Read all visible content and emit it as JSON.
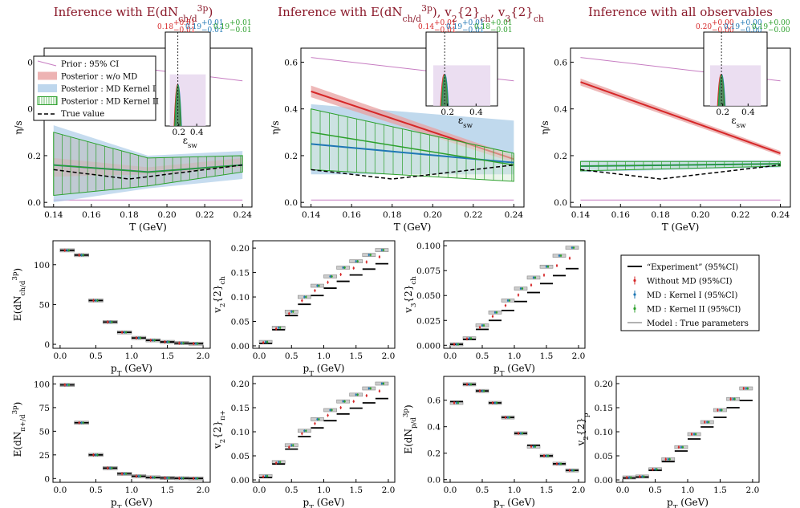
{
  "chart_data": [
    {
      "type": "line",
      "kind": "etas",
      "panel": "A",
      "title": "Inference with E(dN_ch/d^3p)",
      "xlabel": "T (GeV)",
      "ylabel": "η/s",
      "xlim": [
        0.135,
        0.245
      ],
      "ylim": [
        -0.02,
        0.66
      ],
      "xticks": [
        "0.14",
        "0.16",
        "0.18",
        "0.20",
        "0.22",
        "0.24"
      ],
      "yticks": [
        "0.0",
        "0.2",
        "0.4",
        "0.6"
      ],
      "series": [
        {
          "name": "Prior : 95% CI",
          "x": [
            0.14,
            0.24
          ],
          "lower": [
            0.01,
            0.01
          ],
          "upper": [
            0.62,
            0.52
          ],
          "color": "#c77dc2"
        },
        {
          "name": "Posterior : w/o MD",
          "x": [
            0.14,
            0.19,
            0.24
          ],
          "lower": [
            0.11,
            0.12,
            0.15
          ],
          "upper": [
            0.19,
            0.15,
            0.19
          ],
          "color": "#e8a0a0"
        },
        {
          "name": "Posterior : MD Kernel I",
          "x": [
            0.14,
            0.19,
            0.24
          ],
          "lower": [
            0.0,
            0.06,
            0.1
          ],
          "upper": [
            0.33,
            0.2,
            0.22
          ],
          "center": [
            0.16,
            0.13,
            0.16
          ],
          "color": "#aecde8"
        },
        {
          "name": "Posterior : MD Kernel II",
          "x": [
            0.14,
            0.19,
            0.24
          ],
          "lower": [
            0.03,
            0.07,
            0.13
          ],
          "upper": [
            0.3,
            0.19,
            0.2
          ],
          "center": [
            0.16,
            0.13,
            0.16
          ],
          "color": "#2ca02c"
        },
        {
          "name": "True value",
          "x": [
            0.14,
            0.18,
            0.24
          ],
          "y": [
            0.14,
            0.1,
            0.16
          ],
          "color": "#000000"
        }
      ],
      "legend": "top-left",
      "inset": {
        "xlabel": "ε_sw",
        "xticks": [
          "0.2",
          "0.4"
        ],
        "labels": [
          {
            "text": "0.18",
            "sup": "+0.01",
            "sub": "−0.01",
            "color": "#d62728"
          },
          {
            "text": "0.19",
            "sup": "+0.01",
            "sub": "−0.01",
            "color": "#1f77b4"
          },
          {
            "text": "0.19",
            "sup": "+0.01",
            "sub": "−0.01",
            "color": "#2ca02c"
          }
        ],
        "prior_range": [
          0.1,
          0.5
        ],
        "peak": 0.19
      }
    },
    {
      "type": "line",
      "kind": "etas",
      "panel": "B",
      "title": "Inference with E(dN_ch/d^3p), v_2{2}_ch, v_3{2}_ch",
      "xlabel": "T (GeV)",
      "ylabel": "η/s",
      "xlim": [
        0.135,
        0.245
      ],
      "ylim": [
        -0.02,
        0.66
      ],
      "xticks": [
        "0.14",
        "0.16",
        "0.18",
        "0.20",
        "0.22",
        "0.24"
      ],
      "yticks": [
        "0.0",
        "0.2",
        "0.4",
        "0.6"
      ],
      "series": [
        {
          "name": "Prior",
          "x": [
            0.14,
            0.24
          ],
          "lower": [
            0.01,
            0.01
          ],
          "upper": [
            0.62,
            0.52
          ],
          "color": "#c77dc2"
        },
        {
          "name": "w/o MD",
          "x": [
            0.14,
            0.24
          ],
          "lower": [
            0.45,
            0.17
          ],
          "upper": [
            0.5,
            0.2
          ],
          "center": [
            0.475,
            0.185
          ],
          "color": "#d62728"
        },
        {
          "name": "MD Kernel I",
          "x": [
            0.14,
            0.24
          ],
          "lower": [
            0.12,
            0.12
          ],
          "upper": [
            0.42,
            0.35
          ],
          "center": [
            0.25,
            0.17
          ],
          "color": "#1f77b4"
        },
        {
          "name": "MD Kernel II",
          "x": [
            0.14,
            0.24
          ],
          "lower": [
            0.14,
            0.09
          ],
          "upper": [
            0.4,
            0.21
          ],
          "center": [
            0.3,
            0.16
          ],
          "color": "#2ca02c"
        },
        {
          "name": "True",
          "x": [
            0.14,
            0.18,
            0.24
          ],
          "y": [
            0.14,
            0.1,
            0.16
          ],
          "color": "#000000"
        }
      ],
      "inset": {
        "xlabel": "ε_sw",
        "xticks": [
          "0.2",
          "0.4"
        ],
        "labels": [
          {
            "text": "0.14",
            "sup": "+0.01",
            "sub": "−0.01",
            "color": "#d62728"
          },
          {
            "text": "0.19",
            "sup": "+0.01",
            "sub": "−0.01",
            "color": "#1f77b4"
          },
          {
            "text": "0.18",
            "sup": "+0.01",
            "sub": "−0.01",
            "color": "#2ca02c"
          }
        ],
        "prior_range": [
          0.1,
          0.5
        ],
        "peak": 0.18
      }
    },
    {
      "type": "line",
      "kind": "etas",
      "panel": "C",
      "title": "Inference with all observables",
      "xlabel": "T (GeV)",
      "ylabel": "η/s",
      "xlim": [
        0.135,
        0.245
      ],
      "ylim": [
        -0.02,
        0.66
      ],
      "xticks": [
        "0.14",
        "0.16",
        "0.18",
        "0.20",
        "0.22",
        "0.24"
      ],
      "yticks": [
        "0.0",
        "0.2",
        "0.4",
        "0.6"
      ],
      "series": [
        {
          "name": "Prior",
          "x": [
            0.14,
            0.24
          ],
          "lower": [
            0.01,
            0.01
          ],
          "upper": [
            0.62,
            0.52
          ],
          "color": "#c77dc2"
        },
        {
          "name": "w/o MD",
          "x": [
            0.14,
            0.24
          ],
          "lower": [
            0.5,
            0.2
          ],
          "upper": [
            0.53,
            0.22
          ],
          "center": [
            0.515,
            0.21
          ],
          "color": "#d62728"
        },
        {
          "name": "MD Kernel I",
          "x": [
            0.14,
            0.24
          ],
          "lower": [
            0.13,
            0.15
          ],
          "upper": [
            0.18,
            0.18
          ],
          "center": [
            0.155,
            0.165
          ],
          "color": "#1f77b4"
        },
        {
          "name": "MD Kernel II",
          "x": [
            0.14,
            0.24
          ],
          "lower": [
            0.135,
            0.155
          ],
          "upper": [
            0.175,
            0.175
          ],
          "center": [
            0.155,
            0.165
          ],
          "color": "#2ca02c"
        },
        {
          "name": "True",
          "x": [
            0.14,
            0.18,
            0.24
          ],
          "y": [
            0.14,
            0.1,
            0.16
          ],
          "color": "#000000"
        }
      ],
      "inset": {
        "xlabel": "ε_sw",
        "xticks": [
          "0.2",
          "0.4"
        ],
        "labels": [
          {
            "text": "0.20",
            "sup": "+0.00",
            "sub": "−0.00",
            "color": "#d62728"
          },
          {
            "text": "0.19",
            "sup": "+0.00",
            "sub": "−0.00",
            "color": "#1f77b4"
          },
          {
            "text": "0.19",
            "sup": "+0.00",
            "sub": "−0.00",
            "color": "#2ca02c"
          }
        ],
        "prior_range": [
          0.1,
          0.5
        ],
        "peak": 0.19
      }
    },
    {
      "type": "scatter",
      "kind": "obs",
      "ylabel": "E(dN_ch/d^3p)",
      "xlabel": "p_T (GeV)",
      "xlim": [
        -0.1,
        2.1
      ],
      "ylim": [
        -5,
        130
      ],
      "xticks": [
        "0.0",
        "0.5",
        "1.0",
        "1.5",
        "2.0"
      ],
      "yticks": [
        "0",
        "50",
        "100"
      ],
      "x": [
        0.1,
        0.3,
        0.5,
        0.7,
        0.9,
        1.1,
        1.3,
        1.5,
        1.7,
        1.9
      ],
      "exp": [
        118,
        112,
        55,
        28,
        15,
        8,
        5,
        3,
        1.5,
        0.8
      ],
      "model": [
        118,
        112,
        55,
        28,
        15,
        8,
        5,
        3,
        1.5,
        0.8
      ]
    },
    {
      "type": "scatter",
      "kind": "obs",
      "ylabel": "v_2{2}_ch",
      "xlabel": "p_T (GeV)",
      "xlim": [
        -0.1,
        2.1
      ],
      "ylim": [
        -0.005,
        0.215
      ],
      "xticks": [
        "0.0",
        "0.5",
        "1.0",
        "1.5",
        "2.0"
      ],
      "yticks": [
        "0.00",
        "0.05",
        "0.10",
        "0.15",
        "0.20"
      ],
      "x": [
        0.1,
        0.3,
        0.5,
        0.7,
        0.9,
        1.1,
        1.3,
        1.5,
        1.7,
        1.9
      ],
      "exp": [
        0.005,
        0.033,
        0.062,
        0.085,
        0.103,
        0.118,
        0.132,
        0.145,
        0.157,
        0.168
      ],
      "model": [
        0.008,
        0.037,
        0.07,
        0.1,
        0.123,
        0.142,
        0.16,
        0.173,
        0.186,
        0.196
      ]
    },
    {
      "type": "scatter",
      "kind": "obs",
      "ylabel": "v_3{2}_ch",
      "xlabel": "p_T (GeV)",
      "xlim": [
        -0.1,
        2.1
      ],
      "ylim": [
        -0.003,
        0.105
      ],
      "xticks": [
        "0.0",
        "0.5",
        "1.0",
        "1.5",
        "2.0"
      ],
      "yticks": [
        "0.000",
        "0.025",
        "0.050",
        "0.075",
        "0.100"
      ],
      "x": [
        0.1,
        0.3,
        0.5,
        0.7,
        0.9,
        1.1,
        1.3,
        1.5,
        1.7,
        1.9
      ],
      "exp": [
        0.001,
        0.006,
        0.016,
        0.025,
        0.035,
        0.044,
        0.053,
        0.062,
        0.07,
        0.077
      ],
      "model": [
        0.001,
        0.007,
        0.02,
        0.033,
        0.045,
        0.057,
        0.068,
        0.079,
        0.09,
        0.098
      ]
    },
    {
      "type": "scatter",
      "kind": "obs",
      "ylabel": "E(dN_π+/d^3p)",
      "xlabel": "p_T (GeV)",
      "xlim": [
        -0.1,
        2.1
      ],
      "ylim": [
        -4,
        108
      ],
      "xticks": [
        "0.0",
        "0.5",
        "1.0",
        "1.5",
        "2.0"
      ],
      "yticks": [
        "0",
        "25",
        "50",
        "75",
        "100"
      ],
      "x": [
        0.1,
        0.3,
        0.5,
        0.7,
        0.9,
        1.1,
        1.3,
        1.5,
        1.7,
        1.9
      ],
      "exp": [
        99,
        59,
        25,
        11,
        5,
        2.5,
        1.2,
        0.6,
        0.3,
        0.1
      ],
      "model": [
        99,
        59,
        25,
        11,
        5,
        2.5,
        1.2,
        0.6,
        0.3,
        0.1
      ]
    },
    {
      "type": "scatter",
      "kind": "obs",
      "ylabel": "v_2{2}_π+",
      "xlabel": "p_T (GeV)",
      "xlim": [
        -0.1,
        2.1
      ],
      "ylim": [
        -0.005,
        0.215
      ],
      "xticks": [
        "0.0",
        "0.5",
        "1.0",
        "1.5",
        "2.0"
      ],
      "yticks": [
        "0.00",
        "0.05",
        "0.10",
        "0.15",
        "0.20"
      ],
      "x": [
        0.1,
        0.3,
        0.5,
        0.7,
        0.9,
        1.1,
        1.3,
        1.5,
        1.7,
        1.9
      ],
      "exp": [
        0.005,
        0.033,
        0.064,
        0.09,
        0.108,
        0.123,
        0.137,
        0.149,
        0.16,
        0.169
      ],
      "model": [
        0.008,
        0.037,
        0.072,
        0.102,
        0.126,
        0.145,
        0.163,
        0.177,
        0.19,
        0.2
      ]
    },
    {
      "type": "scatter",
      "kind": "obs",
      "ylabel": "E(dN_p/d^3p)",
      "xlabel": "p_T (GeV)",
      "xlim": [
        -0.1,
        2.1
      ],
      "ylim": [
        -0.02,
        0.78
      ],
      "xticks": [
        "0.0",
        "0.5",
        "1.0",
        "1.5",
        "2.0"
      ],
      "yticks": [
        "0.0",
        "0.2",
        "0.4",
        "0.6"
      ],
      "x": [
        0.1,
        0.3,
        0.5,
        0.7,
        0.9,
        1.1,
        1.3,
        1.5,
        1.7,
        1.9
      ],
      "exp": [
        0.59,
        0.72,
        0.67,
        0.58,
        0.47,
        0.35,
        0.26,
        0.18,
        0.12,
        0.07
      ],
      "model": [
        0.58,
        0.72,
        0.67,
        0.58,
        0.47,
        0.35,
        0.25,
        0.18,
        0.12,
        0.07
      ]
    },
    {
      "type": "scatter",
      "kind": "obs",
      "ylabel": "v_2{2}_p",
      "xlabel": "p_T (GeV)",
      "xlim": [
        -0.1,
        2.1
      ],
      "ylim": [
        -0.005,
        0.215
      ],
      "xticks": [
        "0.0",
        "0.5",
        "1.0",
        "1.5",
        "2.0"
      ],
      "yticks": [
        "0.00",
        "0.05",
        "0.10",
        "0.15",
        "0.20"
      ],
      "x": [
        0.1,
        0.3,
        0.5,
        0.7,
        0.9,
        1.1,
        1.3,
        1.5,
        1.7,
        1.9
      ],
      "exp": [
        0.004,
        0.006,
        0.02,
        0.038,
        0.06,
        0.085,
        0.11,
        0.13,
        0.15,
        0.165
      ],
      "model": [
        0.005,
        0.007,
        0.022,
        0.043,
        0.068,
        0.095,
        0.12,
        0.145,
        0.168,
        0.19
      ]
    }
  ],
  "legend_obs": {
    "items": [
      {
        "label": "“Experiment” (95%CI)",
        "color": "#000000"
      },
      {
        "label": "Without MD (95%CI)",
        "color": "#d62728"
      },
      {
        "label": "MD : Kernel I (95%CI)",
        "color": "#1f77b4"
      },
      {
        "label": "MD : Kernel II (95%CI)",
        "color": "#2ca02c"
      },
      {
        "label": "Model : True parameters",
        "color": "#999999"
      }
    ]
  }
}
